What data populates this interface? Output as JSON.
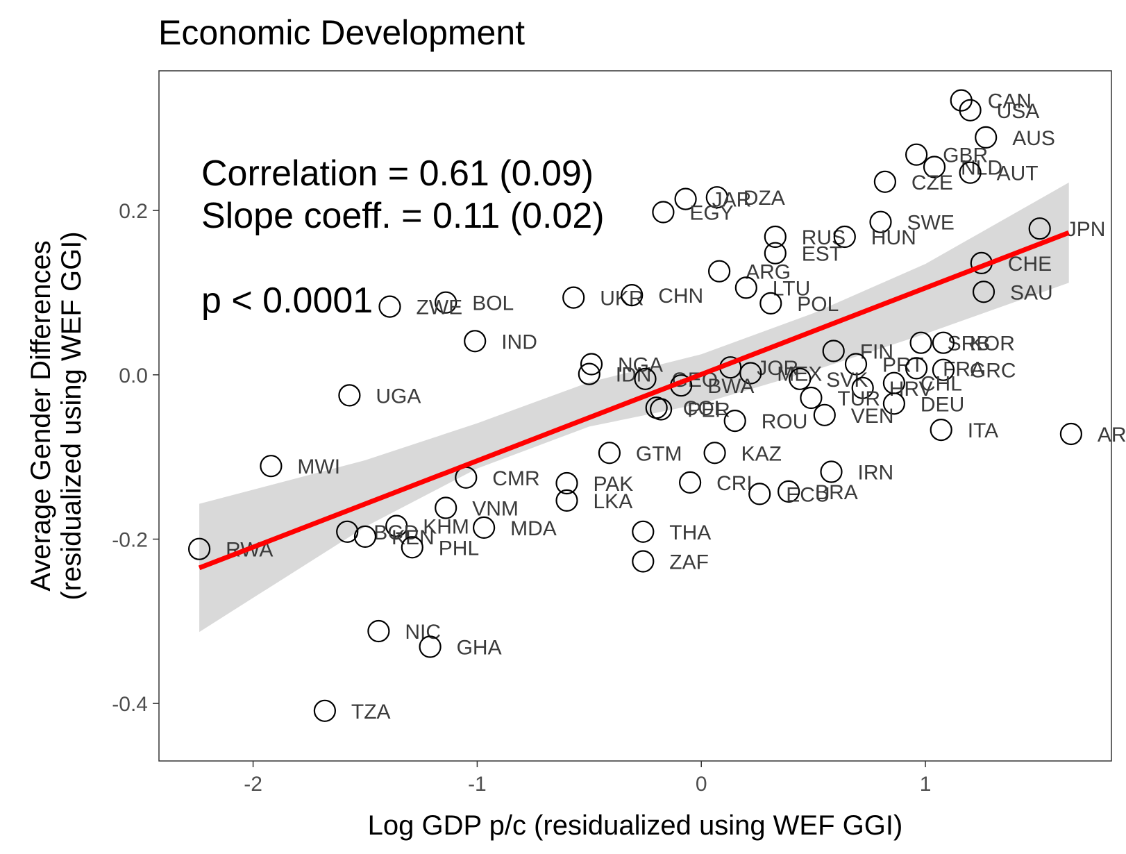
{
  "chart_data": {
    "type": "scatter",
    "title": "Economic Development",
    "xlabel": "Log GDP p/c (residualized using WEF GGI)",
    "ylabel_lines": [
      "Average Gender Differences",
      "(residualized using WEF GGI)"
    ],
    "xlim": [
      -2.42,
      1.83
    ],
    "ylim": [
      -0.47,
      0.37
    ],
    "x_ticks": [
      {
        "value": -2,
        "label": "-2"
      },
      {
        "value": -1,
        "label": "-1"
      },
      {
        "value": 0,
        "label": "0"
      },
      {
        "value": 1,
        "label": "1"
      }
    ],
    "y_ticks": [
      {
        "value": -0.4,
        "label": "-0.4"
      },
      {
        "value": -0.2,
        "label": "-0.2"
      },
      {
        "value": 0,
        "label": "0.0"
      },
      {
        "value": 0.2,
        "label": "0.2"
      }
    ],
    "grid": false,
    "annotations": [
      "Correlation = 0.61 (0.09)",
      "Slope coeff. = 0.11 (0.02)",
      "p < 0.0001"
    ],
    "fit_line": {
      "x": [
        -2.24,
        1.64
      ],
      "y": [
        -0.235,
        0.173
      ],
      "color": "#ff0000"
    },
    "confidence_band": {
      "x": [
        -2.24,
        -1.5,
        -1.0,
        -0.5,
        0.0,
        0.5,
        1.0,
        1.64
      ],
      "lower": [
        -0.313,
        -0.185,
        -0.114,
        -0.063,
        -0.035,
        0.005,
        0.05,
        0.112
      ],
      "upper": [
        -0.157,
        -0.104,
        -0.059,
        -0.009,
        0.025,
        0.075,
        0.135,
        0.234
      ],
      "color": "#d9d9d9"
    },
    "points": [
      {
        "label": "CAN",
        "x": 1.16,
        "y": 0.334
      },
      {
        "label": "USA",
        "x": 1.2,
        "y": 0.322
      },
      {
        "label": "AUS",
        "x": 1.27,
        "y": 0.289
      },
      {
        "label": "GBR",
        "x": 0.96,
        "y": 0.268
      },
      {
        "label": "NLD",
        "x": 1.04,
        "y": 0.253
      },
      {
        "label": "AUT",
        "x": 1.2,
        "y": 0.246
      },
      {
        "label": "CZE",
        "x": 0.82,
        "y": 0.235
      },
      {
        "label": "DZA",
        "x": 0.07,
        "y": 0.216
      },
      {
        "label": "JAR",
        "x": -0.07,
        "y": 0.214
      },
      {
        "label": "EGY",
        "x": -0.17,
        "y": 0.198
      },
      {
        "label": "SWE",
        "x": 0.8,
        "y": 0.186
      },
      {
        "label": "JPN",
        "x": 1.51,
        "y": 0.178
      },
      {
        "label": "RUS",
        "x": 0.33,
        "y": 0.168
      },
      {
        "label": "HUN",
        "x": 0.64,
        "y": 0.168
      },
      {
        "label": "EST",
        "x": 0.33,
        "y": 0.148
      },
      {
        "label": "CHE",
        "x": 1.25,
        "y": 0.136
      },
      {
        "label": "ARG",
        "x": 0.08,
        "y": 0.126
      },
      {
        "label": "LTU",
        "x": 0.2,
        "y": 0.106
      },
      {
        "label": "SAU",
        "x": 1.26,
        "y": 0.101
      },
      {
        "label": "UKR",
        "x": -0.57,
        "y": 0.094
      },
      {
        "label": "CHN",
        "x": -0.31,
        "y": 0.097
      },
      {
        "label": "BOL",
        "x": -1.14,
        "y": 0.088
      },
      {
        "label": "POL",
        "x": 0.31,
        "y": 0.087
      },
      {
        "label": "ZWE",
        "x": -1.39,
        "y": 0.083
      },
      {
        "label": "IND",
        "x": -1.01,
        "y": 0.041
      },
      {
        "label": "SRB",
        "x": 0.98,
        "y": 0.039
      },
      {
        "label": "KOR",
        "x": 1.08,
        "y": 0.039
      },
      {
        "label": "FIN",
        "x": 0.59,
        "y": 0.029
      },
      {
        "label": "NGA",
        "x": -0.49,
        "y": 0.013
      },
      {
        "label": "PRT",
        "x": 0.69,
        "y": 0.013
      },
      {
        "label": "JOR",
        "x": 0.13,
        "y": 0.009
      },
      {
        "label": "FRA",
        "x": 0.96,
        "y": 0.008
      },
      {
        "label": "GRC",
        "x": 1.08,
        "y": 0.006
      },
      {
        "label": "MEX",
        "x": 0.22,
        "y": 0.002
      },
      {
        "label": "IDN",
        "x": -0.5,
        "y": 0.001
      },
      {
        "label": "GEO",
        "x": -0.25,
        "y": -0.005
      },
      {
        "label": "SVK",
        "x": 0.44,
        "y": -0.005
      },
      {
        "label": "CHL",
        "x": 0.86,
        "y": -0.01
      },
      {
        "label": "BWA",
        "x": -0.09,
        "y": -0.013
      },
      {
        "label": "HRV",
        "x": 0.72,
        "y": -0.016
      },
      {
        "label": "UGA",
        "x": -1.57,
        "y": -0.025
      },
      {
        "label": "TUR",
        "x": 0.49,
        "y": -0.028
      },
      {
        "label": "DEU",
        "x": 0.86,
        "y": -0.035
      },
      {
        "label": "COL",
        "x": -0.2,
        "y": -0.04
      },
      {
        "label": "PER",
        "x": -0.18,
        "y": -0.042
      },
      {
        "label": "VEN",
        "x": 0.55,
        "y": -0.049
      },
      {
        "label": "ROU",
        "x": 0.15,
        "y": -0.056
      },
      {
        "label": "ITA",
        "x": 1.07,
        "y": -0.067
      },
      {
        "label": "ARE",
        "x": 1.65,
        "y": -0.072
      },
      {
        "label": "GTM",
        "x": -0.41,
        "y": -0.095
      },
      {
        "label": "KAZ",
        "x": 0.06,
        "y": -0.095
      },
      {
        "label": "MWI",
        "x": -1.92,
        "y": -0.111
      },
      {
        "label": "IRN",
        "x": 0.58,
        "y": -0.118
      },
      {
        "label": "CMR",
        "x": -1.05,
        "y": -0.125
      },
      {
        "label": "PAK",
        "x": -0.6,
        "y": -0.132
      },
      {
        "label": "CRI",
        "x": -0.05,
        "y": -0.131
      },
      {
        "label": "BRA",
        "x": 0.39,
        "y": -0.142
      },
      {
        "label": "ECU",
        "x": 0.26,
        "y": -0.145
      },
      {
        "label": "LKA",
        "x": -0.6,
        "y": -0.153
      },
      {
        "label": "VNM",
        "x": -1.14,
        "y": -0.162
      },
      {
        "label": "KHM",
        "x": -1.36,
        "y": -0.184
      },
      {
        "label": "MDA",
        "x": -0.97,
        "y": -0.186
      },
      {
        "label": "BGD",
        "x": -1.58,
        "y": -0.191
      },
      {
        "label": "THA",
        "x": -0.26,
        "y": -0.191
      },
      {
        "label": "KEN",
        "x": -1.5,
        "y": -0.197
      },
      {
        "label": "PHL",
        "x": -1.29,
        "y": -0.21
      },
      {
        "label": "RWA",
        "x": -2.24,
        "y": -0.212
      },
      {
        "label": "ZAF",
        "x": -0.26,
        "y": -0.227
      },
      {
        "label": "NIC",
        "x": -1.44,
        "y": -0.312
      },
      {
        "label": "GHA",
        "x": -1.21,
        "y": -0.331
      },
      {
        "label": "TZA",
        "x": -1.68,
        "y": -0.409
      }
    ]
  }
}
